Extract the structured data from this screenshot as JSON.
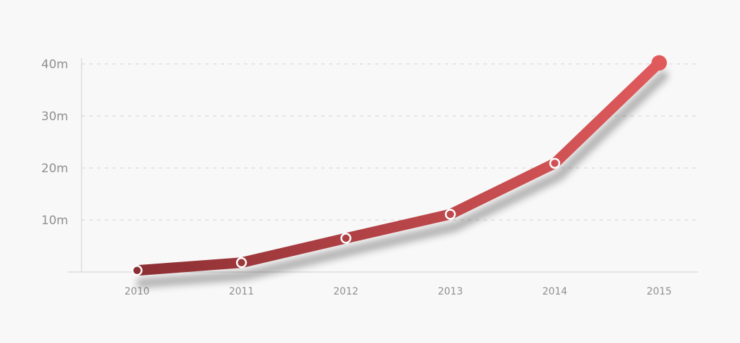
{
  "chart_data": {
    "type": "line",
    "title": "",
    "xlabel": "",
    "ylabel": "",
    "categories": [
      "2010",
      "2011",
      "2012",
      "2013",
      "2014",
      "2015"
    ],
    "series": [
      {
        "values": [
          0.3,
          1.8,
          6.5,
          11.1,
          20.9,
          40.2
        ]
      }
    ],
    "ylim": [
      0,
      40
    ],
    "y_ticks": [
      {
        "value": 10,
        "label": "10m"
      },
      {
        "value": 20,
        "label": "20m"
      },
      {
        "value": 30,
        "label": "30m"
      },
      {
        "value": 40,
        "label": "40m"
      }
    ],
    "grid": true,
    "legend": "none",
    "colors": {
      "line_start": "#8c2f33",
      "line_end": "#e05a5c",
      "grid": "#d9d9d9",
      "axis": "#cfcfcf",
      "marker_fill": "#ffffff"
    }
  }
}
